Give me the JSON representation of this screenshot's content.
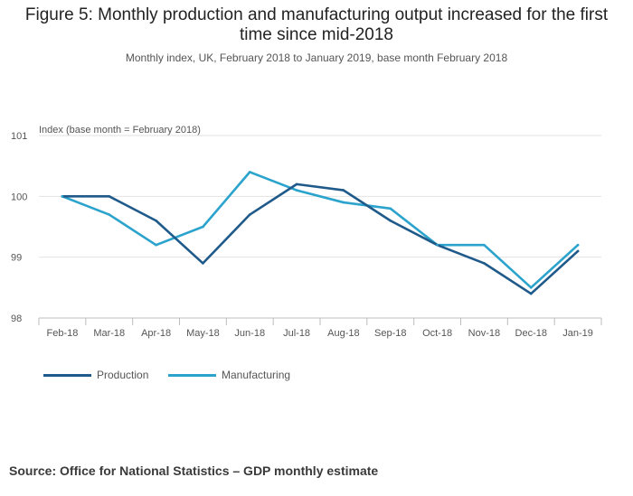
{
  "title": "Figure 5: Monthly production and manufacturing output increased for the first time since mid-2018",
  "subtitle": "Monthly index, UK, February 2018 to January 2019, base month February 2018",
  "source": "Source: Office for National Statistics – GDP monthly estimate",
  "chart_data": {
    "type": "line",
    "ylabel": "Index (base month = February 2018)",
    "ylim": [
      98,
      101
    ],
    "yticks": [
      "101",
      "100",
      "99",
      "98"
    ],
    "grid": true,
    "legend_position": "bottom-left",
    "categories": [
      "Feb-18",
      "Mar-18",
      "Apr-18",
      "May-18",
      "Jun-18",
      "Jul-18",
      "Aug-18",
      "Sep-18",
      "Oct-18",
      "Nov-18",
      "Dec-18",
      "Jan-19"
    ],
    "series": [
      {
        "name": "Production",
        "color": "#1f5a8a",
        "values": [
          100.0,
          100.0,
          99.6,
          98.9,
          99.7,
          100.2,
          100.1,
          99.6,
          99.2,
          98.9,
          98.4,
          99.1
        ]
      },
      {
        "name": "Manufacturing",
        "color": "#2ba3cc",
        "values": [
          100.0,
          99.7,
          99.2,
          99.5,
          100.4,
          100.1,
          99.9,
          99.8,
          99.2,
          99.2,
          98.5,
          99.2
        ]
      }
    ]
  }
}
